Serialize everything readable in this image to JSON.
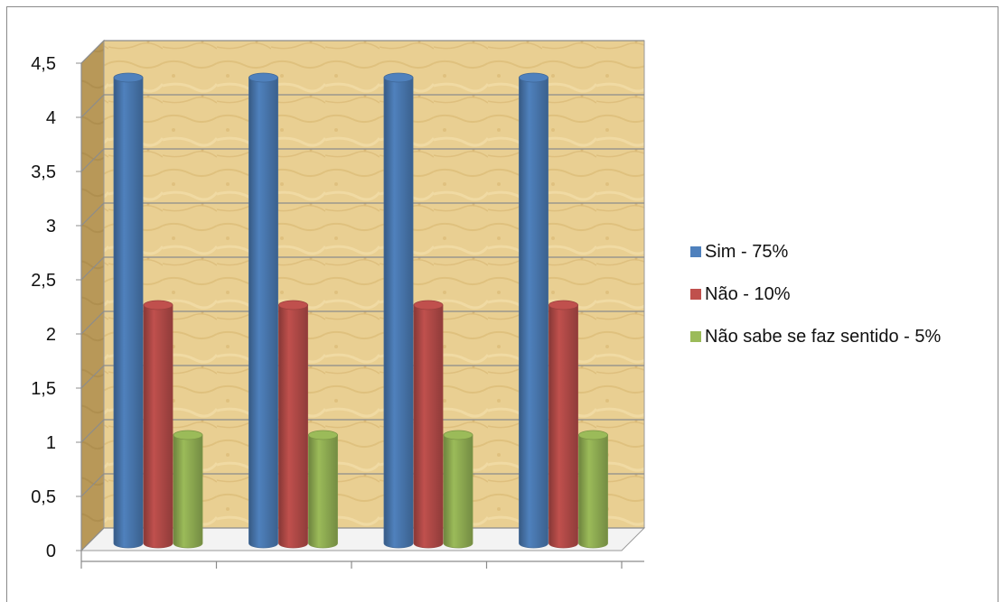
{
  "chart_data": {
    "type": "bar",
    "categories": [
      "",
      "",
      "",
      ""
    ],
    "series": [
      {
        "name": "Sim - 75%",
        "values": [
          4.3,
          4.3,
          4.3,
          4.3
        ],
        "color": "#4f81bd"
      },
      {
        "name": "Não - 10%",
        "values": [
          2.2,
          2.2,
          2.2,
          2.2
        ],
        "color": "#c0504d"
      },
      {
        "name": "Não sabe  se faz sentido - 5%",
        "values": [
          1.0,
          1.0,
          1.0,
          1.0
        ],
        "color": "#9bbb59"
      }
    ],
    "ylim": [
      0,
      4.5
    ],
    "yticks": [
      "0",
      "0,5",
      "1",
      "1,5",
      "2",
      "2,5",
      "3",
      "3,5",
      "4",
      "4,5"
    ],
    "title": "",
    "xlabel": "",
    "ylabel": "",
    "grid": true,
    "legend_position": "right",
    "style": "3d-cylinder",
    "background": "parchment"
  }
}
